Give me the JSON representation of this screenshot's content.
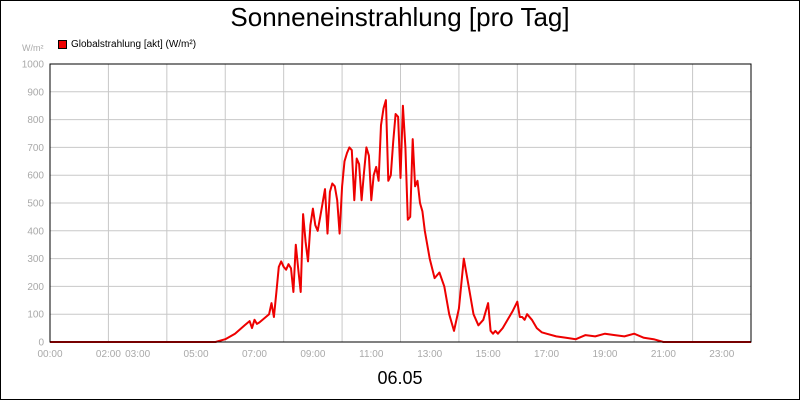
{
  "chart_data": {
    "type": "line",
    "title": "Sonneneinstrahlung [pro Tag]",
    "unit_label": "W/m²",
    "date_label": "06.05",
    "legend": "top-left",
    "grid": true,
    "ylim": [
      0,
      1000
    ],
    "xlim_hours": [
      0,
      24
    ],
    "y_ticks": [
      "0",
      "100",
      "200",
      "300",
      "400",
      "500",
      "600",
      "700",
      "800",
      "900",
      "1000"
    ],
    "x_ticks": [
      "00:00",
      "02:00",
      "03:00",
      "05:00",
      "07:00",
      "09:00",
      "11:00",
      "13:00",
      "15:00",
      "17:00",
      "19:00",
      "21:00",
      "23:00"
    ],
    "x_tick_hours": [
      0,
      2,
      3,
      5,
      7,
      9,
      11,
      13,
      15,
      17,
      19,
      21,
      23
    ],
    "series": [
      {
        "name": "Globalstrahlung [akt] (W/m²)",
        "color": "#ee0000",
        "x": [
          "00:00",
          "05:40",
          "06:00",
          "06:20",
          "06:40",
          "06:50",
          "06:55",
          "07:00",
          "07:05",
          "07:10",
          "07:20",
          "07:30",
          "07:35",
          "07:40",
          "07:45",
          "07:50",
          "07:55",
          "08:00",
          "08:05",
          "08:10",
          "08:15",
          "08:20",
          "08:25",
          "08:30",
          "08:35",
          "08:40",
          "08:45",
          "08:50",
          "08:55",
          "09:00",
          "09:05",
          "09:10",
          "09:15",
          "09:20",
          "09:25",
          "09:30",
          "09:35",
          "09:40",
          "09:45",
          "09:50",
          "09:55",
          "10:00",
          "10:05",
          "10:10",
          "10:15",
          "10:20",
          "10:25",
          "10:30",
          "10:35",
          "10:40",
          "10:45",
          "10:50",
          "10:55",
          "11:00",
          "11:05",
          "11:10",
          "11:15",
          "11:20",
          "11:25",
          "11:30",
          "11:35",
          "11:40",
          "11:45",
          "11:50",
          "11:55",
          "12:00",
          "12:05",
          "12:10",
          "12:15",
          "12:20",
          "12:25",
          "12:30",
          "12:35",
          "12:40",
          "12:45",
          "12:50",
          "13:00",
          "13:10",
          "13:20",
          "13:30",
          "13:40",
          "13:50",
          "14:00",
          "14:10",
          "14:20",
          "14:30",
          "14:40",
          "14:50",
          "15:00",
          "15:05",
          "15:10",
          "15:15",
          "15:20",
          "15:30",
          "15:40",
          "15:50",
          "16:00",
          "16:05",
          "16:10",
          "16:15",
          "16:20",
          "16:30",
          "16:40",
          "16:50",
          "17:00",
          "17:20",
          "17:40",
          "18:00",
          "18:20",
          "18:40",
          "19:00",
          "19:20",
          "19:40",
          "20:00",
          "20:20",
          "20:40",
          "21:00",
          "24:00"
        ],
        "y": [
          0,
          0,
          10,
          30,
          60,
          75,
          50,
          80,
          65,
          70,
          85,
          100,
          140,
          90,
          180,
          270,
          290,
          270,
          260,
          280,
          265,
          180,
          350,
          260,
          180,
          460,
          360,
          290,
          420,
          480,
          420,
          400,
          450,
          500,
          550,
          390,
          540,
          570,
          560,
          510,
          390,
          560,
          650,
          680,
          700,
          690,
          510,
          660,
          640,
          510,
          610,
          700,
          670,
          510,
          600,
          630,
          580,
          780,
          840,
          870,
          580,
          600,
          720,
          820,
          810,
          590,
          850,
          700,
          440,
          450,
          730,
          560,
          580,
          500,
          470,
          400,
          300,
          230,
          250,
          200,
          100,
          40,
          120,
          300,
          200,
          100,
          60,
          80,
          140,
          40,
          30,
          40,
          30,
          50,
          80,
          110,
          145,
          90,
          90,
          80,
          100,
          80,
          50,
          35,
          30,
          20,
          15,
          10,
          25,
          20,
          30,
          25,
          20,
          30,
          15,
          10,
          0,
          0
        ]
      }
    ]
  }
}
